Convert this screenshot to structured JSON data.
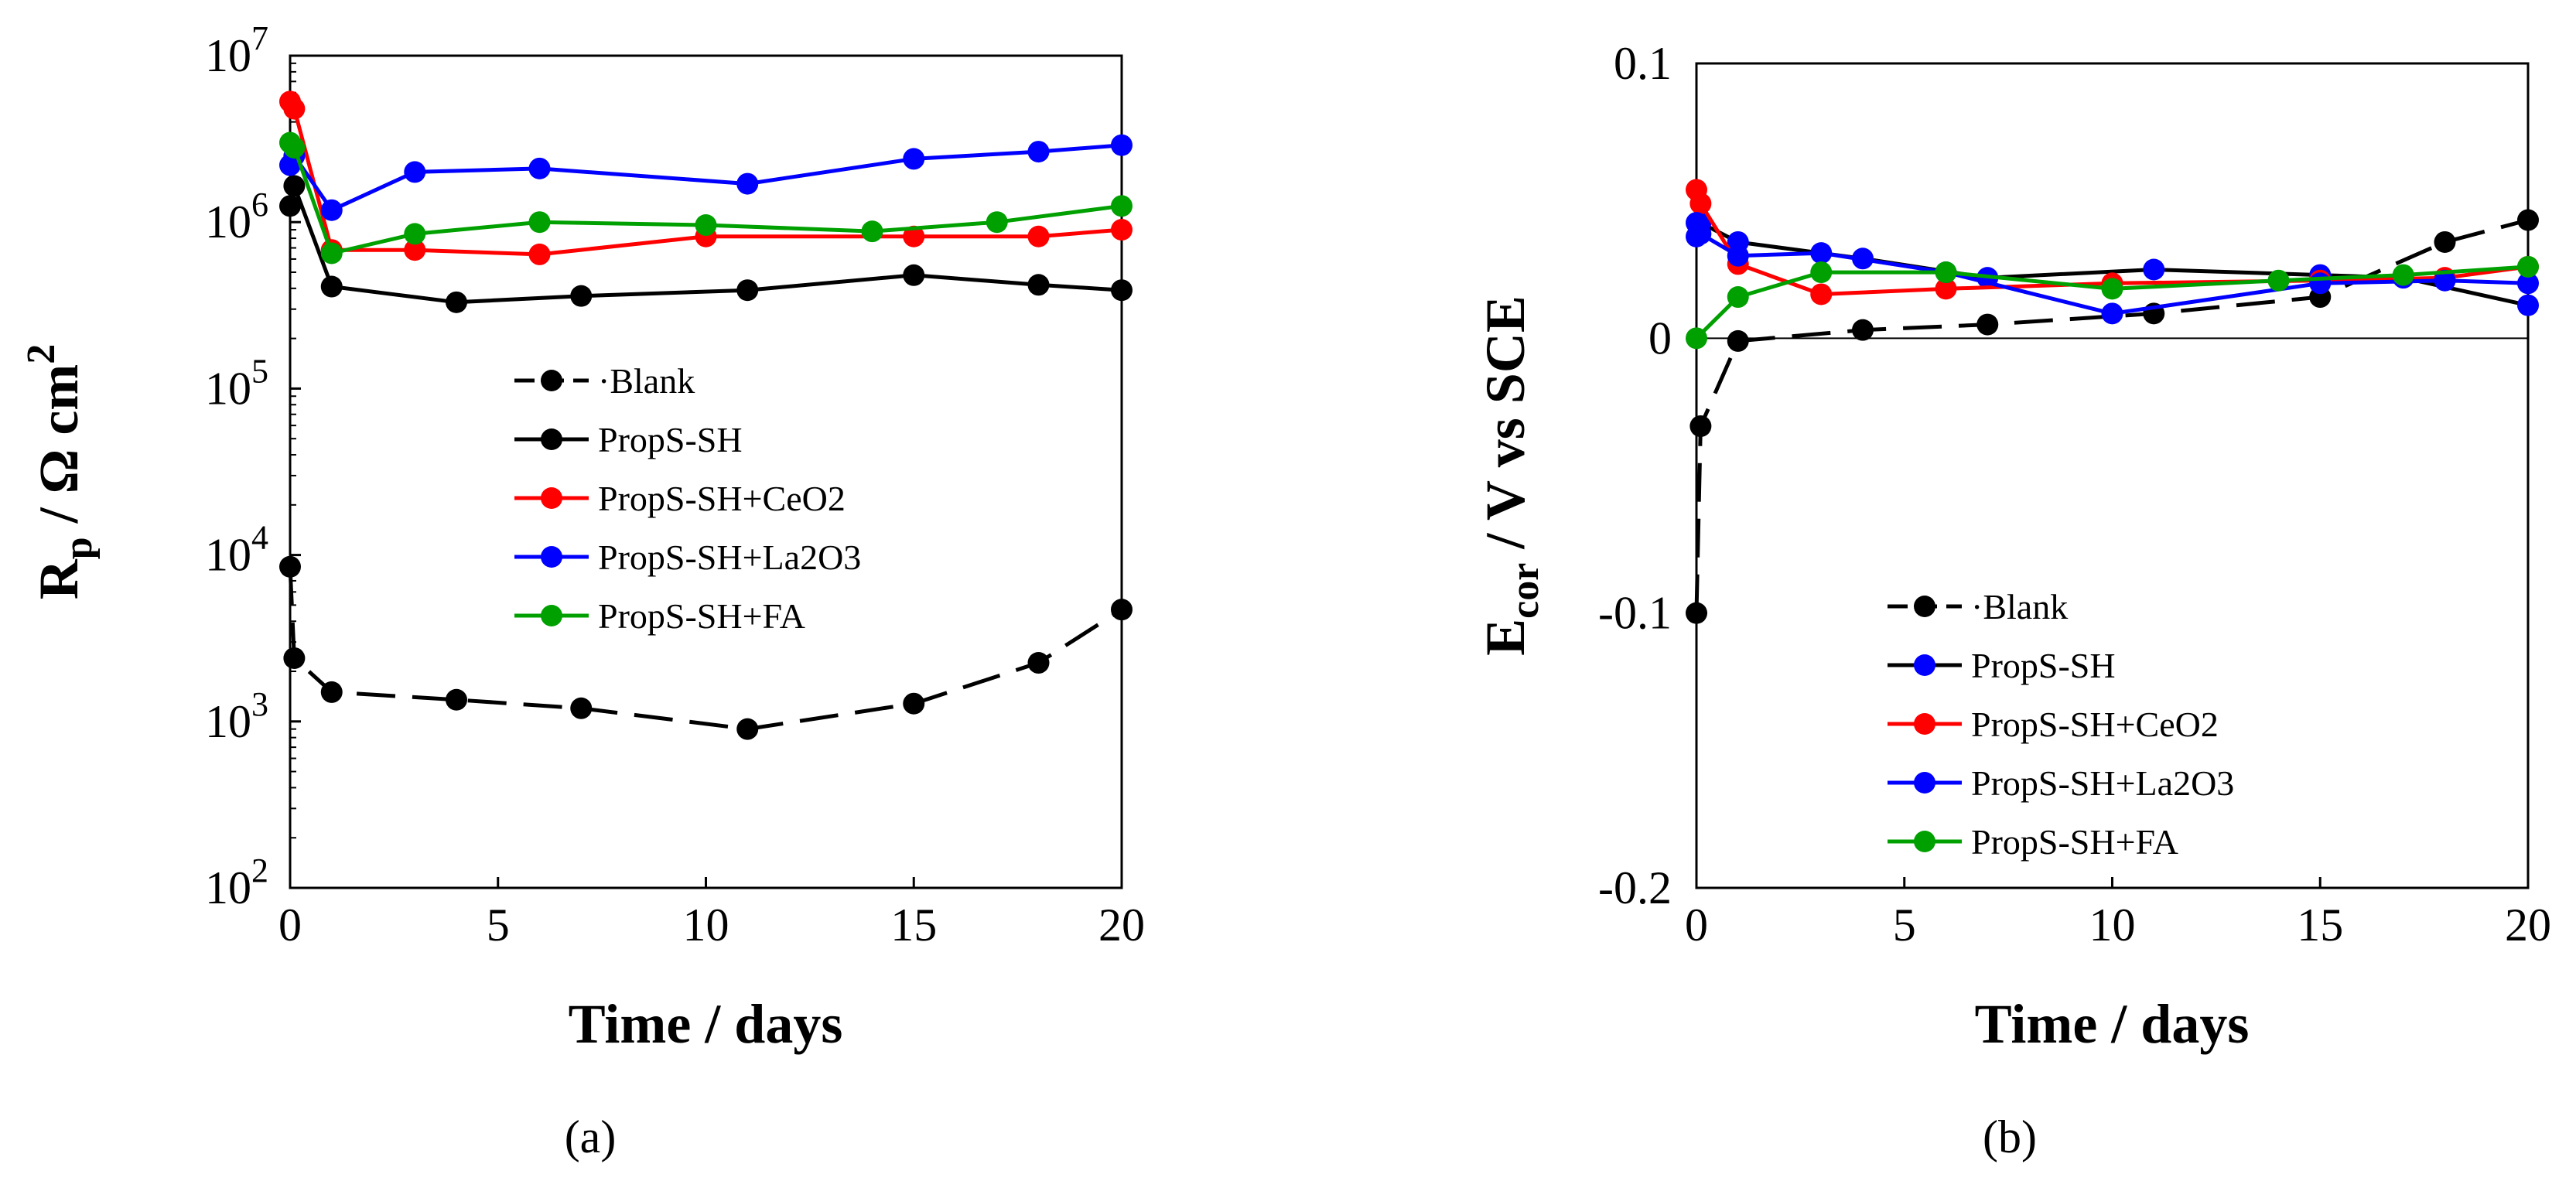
{
  "chart_data": [
    {
      "type": "line",
      "panel": "(a)",
      "xlabel": "Time  / days",
      "ylabel": "Rp / Ω cm2",
      "ylabel_parts": {
        "base": "R",
        "sub": "p",
        "unit": " / Ω cm",
        "sup": "2"
      },
      "yscale": "log",
      "xlim": [
        0,
        20
      ],
      "ylim": [
        100,
        10000000
      ],
      "xticks": [
        0,
        5,
        10,
        15,
        20
      ],
      "xtick_labels": [
        "0",
        "5",
        "10",
        "15",
        "20"
      ],
      "ytick_exponents": [
        2,
        3,
        4,
        5,
        6,
        7
      ],
      "ytick_base": "10",
      "legend_position": "center",
      "series": [
        {
          "name": "Blank",
          "label": "·Blank",
          "color": "#000000",
          "dashed": true,
          "x": [
            0,
            0.1,
            1,
            4,
            7,
            11,
            15,
            18,
            20
          ],
          "y": [
            8500,
            2400,
            1500,
            1350,
            1200,
            900,
            1280,
            2250,
            4700
          ]
        },
        {
          "name": "PropS-SH",
          "label": "PropS-SH",
          "color": "#000000",
          "dashed": false,
          "x": [
            0,
            0.1,
            1,
            4,
            7,
            11,
            15,
            18,
            20
          ],
          "y": [
            1250000,
            1650000,
            410000,
            330000,
            360000,
            390000,
            480000,
            420000,
            390000
          ]
        },
        {
          "name": "PropS-SH+CeO2",
          "label": "PropS-SH+CeO2",
          "color": "#ff0000",
          "dashed": false,
          "x": [
            0,
            0.1,
            1,
            3,
            6,
            10,
            15,
            18,
            20
          ],
          "y": [
            5300000,
            4800000,
            680000,
            680000,
            640000,
            820000,
            820000,
            820000,
            900000
          ]
        },
        {
          "name": "PropS-SH+La2O3",
          "label": "PropS-SH+La2O3",
          "color": "#0000ff",
          "dashed": false,
          "x": [
            0,
            0.1,
            1,
            3,
            6,
            11,
            15,
            18,
            20
          ],
          "y": [
            2200000,
            2500000,
            1180000,
            2000000,
            2100000,
            1700000,
            2400000,
            2650000,
            2900000
          ]
        },
        {
          "name": "PropS-SH+FA",
          "label": "PropS-SH+FA",
          "color": "#00a000",
          "dashed": false,
          "x": [
            0,
            0.1,
            1,
            3,
            6,
            10,
            14,
            17,
            20
          ],
          "y": [
            3000000,
            2800000,
            650000,
            850000,
            1000000,
            960000,
            880000,
            1000000,
            1250000
          ]
        }
      ]
    },
    {
      "type": "line",
      "panel": "(b)",
      "xlabel": "Time  / days",
      "ylabel": "Ecor / V vs SCE",
      "ylabel_parts": {
        "base": "E",
        "sub": "cor",
        "unit": " / V vs SCE"
      },
      "yscale": "linear",
      "xlim": [
        0,
        20
      ],
      "ylim": [
        -0.2,
        0.1
      ],
      "xticks": [
        0,
        5,
        10,
        15,
        20
      ],
      "xtick_labels": [
        "0",
        "5",
        "10",
        "15",
        "20"
      ],
      "yticks": [
        -0.2,
        -0.1,
        0,
        0.1
      ],
      "ytick_labels": [
        "-0.2",
        "-0.1",
        "0",
        "0.1"
      ],
      "legend_position": "lower-left",
      "series": [
        {
          "name": "Blank",
          "label": "·Blank",
          "color": "#000000",
          "marker": "#000000",
          "dashed": true,
          "x": [
            0,
            0.1,
            1,
            4,
            7,
            11,
            15,
            18,
            20
          ],
          "y": [
            -0.1,
            -0.032,
            -0.001,
            0.003,
            0.005,
            0.009,
            0.015,
            0.035,
            0.043
          ]
        },
        {
          "name": "PropS-SH",
          "label": "PropS-SH",
          "color": "#000000",
          "marker": "#0000ff",
          "dashed": false,
          "x": [
            0,
            0.1,
            1,
            4,
            7,
            11,
            15,
            17,
            20
          ],
          "y": [
            0.037,
            0.042,
            0.035,
            0.029,
            0.022,
            0.025,
            0.023,
            0.022,
            0.012
          ]
        },
        {
          "name": "PropS-SH+CeO2",
          "label": "PropS-SH+CeO2",
          "color": "#ff0000",
          "marker": "#ff0000",
          "dashed": false,
          "x": [
            0,
            0.1,
            1,
            3,
            6,
            10,
            15,
            18,
            20
          ],
          "y": [
            0.054,
            0.049,
            0.027,
            0.016,
            0.018,
            0.02,
            0.021,
            0.022,
            0.026
          ]
        },
        {
          "name": "PropS-SH+La2O3",
          "label": "PropS-SH+La2O3",
          "color": "#0000ff",
          "marker": "#0000ff",
          "dashed": false,
          "x": [
            0,
            0.1,
            1,
            3,
            6,
            10,
            15,
            18,
            20
          ],
          "y": [
            0.042,
            0.038,
            0.03,
            0.031,
            0.024,
            0.009,
            0.02,
            0.021,
            0.02
          ]
        },
        {
          "name": "PropS-SH+FA",
          "label": "PropS-SH+FA",
          "color": "#00a000",
          "marker": "#00a000",
          "dashed": false,
          "x": [
            0,
            1,
            3,
            6,
            10,
            14,
            17,
            20
          ],
          "y": [
            0.0,
            0.015,
            0.024,
            0.024,
            0.018,
            0.021,
            0.023,
            0.026
          ]
        }
      ]
    }
  ]
}
